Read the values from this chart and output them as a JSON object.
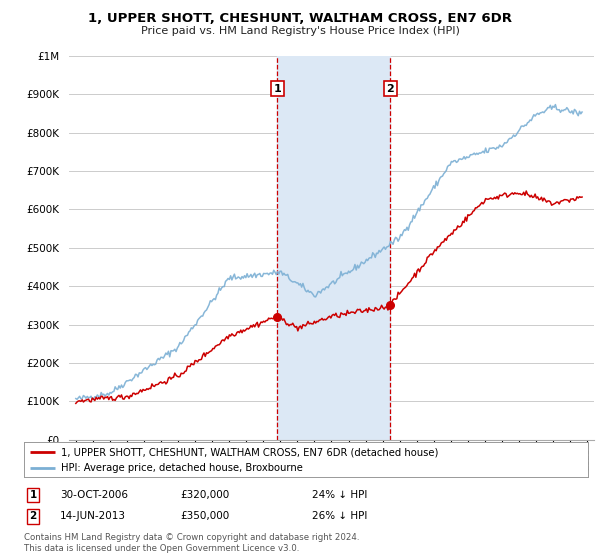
{
  "title": "1, UPPER SHOTT, CHESHUNT, WALTHAM CROSS, EN7 6DR",
  "subtitle": "Price paid vs. HM Land Registry's House Price Index (HPI)",
  "y_ticks": [
    0,
    100000,
    200000,
    300000,
    400000,
    500000,
    600000,
    700000,
    800000,
    900000,
    1000000
  ],
  "y_tick_labels": [
    "£0",
    "£100K",
    "£200K",
    "£300K",
    "£400K",
    "£500K",
    "£600K",
    "£700K",
    "£800K",
    "£900K",
    "£1M"
  ],
  "x_start_year": 1995,
  "x_end_year": 2025,
  "sale1_year": 2006.83,
  "sale1_price": 320000,
  "sale2_year": 2013.45,
  "sale2_price": 350000,
  "sale1_label": "1",
  "sale2_label": "2",
  "sale1_date": "30-OCT-2006",
  "sale2_date": "14-JUN-2013",
  "sale1_pct": "24% ↓ HPI",
  "sale2_pct": "26% ↓ HPI",
  "legend_line1": "1, UPPER SHOTT, CHESHUNT, WALTHAM CROSS, EN7 6DR (detached house)",
  "legend_line2": "HPI: Average price, detached house, Broxbourne",
  "footnote": "Contains HM Land Registry data © Crown copyright and database right 2024.\nThis data is licensed under the Open Government Licence v3.0.",
  "property_color": "#cc0000",
  "hpi_color": "#7bafd4",
  "plot_bg": "#ffffff",
  "grid_color": "#cccccc",
  "vline_color": "#cc0000",
  "span_color": "#dce8f5"
}
